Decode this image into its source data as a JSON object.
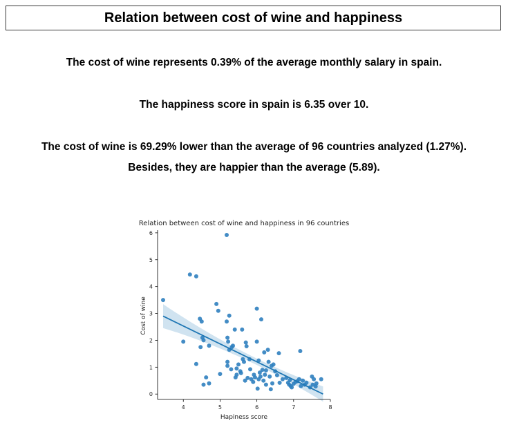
{
  "page": {
    "title": "Relation between cost of wine and happiness",
    "line1": "The cost of wine represents 0.39% of the average monthly salary in spain.",
    "line2": "The happiness score in spain is 6.35 over 10.",
    "line3": "The cost of wine is 69.29% lower than the average of 96 countries analyzed (1.27%).",
    "line4": "Besides, they are happier than the average (5.89)."
  },
  "chart_data": {
    "type": "scatter",
    "title": "Relation between cost of wine and happiness in 96 countries",
    "xlabel": "Hapiness score",
    "ylabel": "Cost of wine",
    "xlim": [
      3.3,
      8.0
    ],
    "ylim": [
      -0.2,
      6.1
    ],
    "xticks": [
      4,
      5,
      6,
      7,
      8
    ],
    "yticks": [
      0,
      1,
      2,
      3,
      4,
      5,
      6
    ],
    "grid": false,
    "point_color": "#2f7fbf",
    "regression": {
      "x_start": 3.45,
      "y_start": 2.9,
      "x_end": 7.8,
      "y_end": 0.0,
      "color": "#1f77b4",
      "band_color": "#a9cce3"
    },
    "points": [
      {
        "x": 3.45,
        "y": 3.5
      },
      {
        "x": 4.0,
        "y": 1.95
      },
      {
        "x": 4.18,
        "y": 4.45
      },
      {
        "x": 4.35,
        "y": 4.38
      },
      {
        "x": 4.35,
        "y": 1.12
      },
      {
        "x": 4.45,
        "y": 2.8
      },
      {
        "x": 4.47,
        "y": 1.75
      },
      {
        "x": 4.5,
        "y": 2.7
      },
      {
        "x": 4.52,
        "y": 2.1
      },
      {
        "x": 4.55,
        "y": 2.0
      },
      {
        "x": 4.55,
        "y": 0.35
      },
      {
        "x": 4.62,
        "y": 0.62
      },
      {
        "x": 4.7,
        "y": 0.4
      },
      {
        "x": 4.7,
        "y": 1.8
      },
      {
        "x": 4.9,
        "y": 3.35
      },
      {
        "x": 4.95,
        "y": 3.1
      },
      {
        "x": 5.0,
        "y": 0.75
      },
      {
        "x": 5.18,
        "y": 5.92
      },
      {
        "x": 5.18,
        "y": 2.7
      },
      {
        "x": 5.2,
        "y": 2.1
      },
      {
        "x": 5.2,
        "y": 1.2
      },
      {
        "x": 5.2,
        "y": 1.05
      },
      {
        "x": 5.22,
        "y": 1.95
      },
      {
        "x": 5.25,
        "y": 2.92
      },
      {
        "x": 5.25,
        "y": 1.65
      },
      {
        "x": 5.3,
        "y": 0.92
      },
      {
        "x": 5.32,
        "y": 1.75
      },
      {
        "x": 5.35,
        "y": 1.8
      },
      {
        "x": 5.4,
        "y": 2.4
      },
      {
        "x": 5.42,
        "y": 0.62
      },
      {
        "x": 5.45,
        "y": 0.72
      },
      {
        "x": 5.45,
        "y": 0.95
      },
      {
        "x": 5.5,
        "y": 1.1
      },
      {
        "x": 5.55,
        "y": 0.85
      },
      {
        "x": 5.6,
        "y": 2.4
      },
      {
        "x": 5.62,
        "y": 1.3
      },
      {
        "x": 5.65,
        "y": 1.2
      },
      {
        "x": 5.68,
        "y": 0.5
      },
      {
        "x": 5.7,
        "y": 1.92
      },
      {
        "x": 5.72,
        "y": 1.78
      },
      {
        "x": 5.75,
        "y": 0.6
      },
      {
        "x": 5.8,
        "y": 1.3
      },
      {
        "x": 5.82,
        "y": 0.92
      },
      {
        "x": 5.85,
        "y": 0.55
      },
      {
        "x": 5.9,
        "y": 0.45
      },
      {
        "x": 5.92,
        "y": 0.72
      },
      {
        "x": 5.95,
        "y": 0.62
      },
      {
        "x": 6.0,
        "y": 3.18
      },
      {
        "x": 6.0,
        "y": 1.95
      },
      {
        "x": 6.02,
        "y": 0.2
      },
      {
        "x": 6.05,
        "y": 0.55
      },
      {
        "x": 6.05,
        "y": 1.25
      },
      {
        "x": 6.08,
        "y": 0.8
      },
      {
        "x": 6.1,
        "y": 0.65
      },
      {
        "x": 6.12,
        "y": 2.78
      },
      {
        "x": 6.15,
        "y": 0.9
      },
      {
        "x": 6.18,
        "y": 0.5
      },
      {
        "x": 6.2,
        "y": 1.55
      },
      {
        "x": 6.22,
        "y": 0.72
      },
      {
        "x": 6.25,
        "y": 0.35
      },
      {
        "x": 6.25,
        "y": 0.88
      },
      {
        "x": 6.3,
        "y": 1.65
      },
      {
        "x": 6.32,
        "y": 1.2
      },
      {
        "x": 6.35,
        "y": 0.65
      },
      {
        "x": 6.38,
        "y": 0.18
      },
      {
        "x": 6.4,
        "y": 1.05
      },
      {
        "x": 6.42,
        "y": 0.4
      },
      {
        "x": 6.45,
        "y": 1.1
      },
      {
        "x": 6.5,
        "y": 0.85
      },
      {
        "x": 6.6,
        "y": 1.52
      },
      {
        "x": 6.62,
        "y": 0.42
      },
      {
        "x": 6.7,
        "y": 0.55
      },
      {
        "x": 6.8,
        "y": 0.6
      },
      {
        "x": 6.85,
        "y": 0.42
      },
      {
        "x": 6.88,
        "y": 0.35
      },
      {
        "x": 6.9,
        "y": 0.52
      },
      {
        "x": 6.95,
        "y": 0.25
      },
      {
        "x": 7.0,
        "y": 0.38
      },
      {
        "x": 7.05,
        "y": 0.45
      },
      {
        "x": 7.1,
        "y": 0.48
      },
      {
        "x": 7.15,
        "y": 0.55
      },
      {
        "x": 7.18,
        "y": 1.6
      },
      {
        "x": 7.2,
        "y": 0.3
      },
      {
        "x": 7.25,
        "y": 0.5
      },
      {
        "x": 7.3,
        "y": 0.35
      },
      {
        "x": 7.35,
        "y": 0.42
      },
      {
        "x": 7.45,
        "y": 0.25
      },
      {
        "x": 7.5,
        "y": 0.65
      },
      {
        "x": 7.52,
        "y": 0.35
      },
      {
        "x": 7.55,
        "y": 0.55
      },
      {
        "x": 7.6,
        "y": 0.28
      },
      {
        "x": 7.62,
        "y": 0.4
      },
      {
        "x": 7.75,
        "y": 0.55
      },
      {
        "x": 6.55,
        "y": 0.7
      },
      {
        "x": 5.57,
        "y": 0.78
      },
      {
        "x": 6.92,
        "y": 0.3
      }
    ]
  }
}
